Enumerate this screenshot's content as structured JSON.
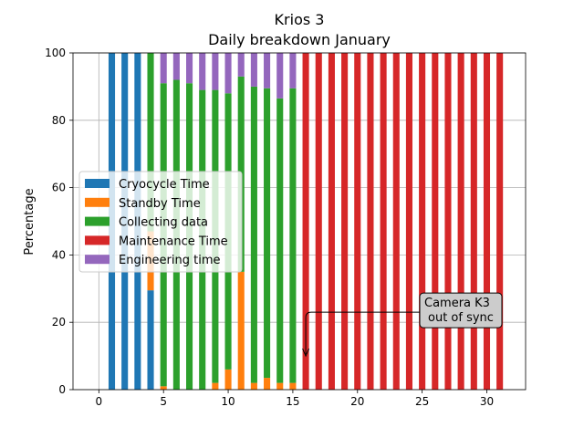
{
  "chart_data": {
    "type": "bar",
    "stacked": true,
    "title": "Krios 3",
    "subtitle": "Daily breakdown January",
    "xlabel": "",
    "ylabel": "Percentage",
    "xlim": [
      -2,
      33
    ],
    "ylim": [
      0,
      100
    ],
    "xticks": [
      0,
      5,
      10,
      15,
      20,
      25,
      30
    ],
    "yticks": [
      0,
      20,
      40,
      60,
      80,
      100
    ],
    "grid": true,
    "legend_position": "center-left",
    "x": [
      1,
      2,
      3,
      4,
      5,
      6,
      7,
      8,
      9,
      10,
      11,
      12,
      13,
      14,
      15,
      16,
      17,
      18,
      19,
      20,
      21,
      22,
      23,
      24,
      25,
      26,
      27,
      28,
      29,
      30,
      31
    ],
    "series": [
      {
        "name": "Cryocycle Time",
        "color": "#1f77b4",
        "values": [
          100,
          100,
          100,
          29.5,
          0,
          0,
          0,
          0,
          0,
          0,
          0,
          0,
          0,
          0,
          0,
          0,
          0,
          0,
          0,
          0,
          0,
          0,
          0,
          0,
          0,
          0,
          0,
          0,
          0,
          0,
          0
        ]
      },
      {
        "name": "Standby Time",
        "color": "#ff7f0e",
        "values": [
          0,
          0,
          0,
          17.5,
          1,
          0,
          0,
          0,
          2,
          6,
          35,
          2,
          3.5,
          2,
          2,
          0,
          0,
          0,
          0,
          0,
          0,
          0,
          0,
          0,
          0,
          0,
          0,
          0,
          0,
          0,
          0
        ]
      },
      {
        "name": "Collecting data",
        "color": "#2ca02c",
        "values": [
          0,
          0,
          0,
          53,
          90,
          92,
          91,
          89,
          87,
          82,
          58,
          88,
          86,
          84.5,
          87.5,
          0,
          0,
          0,
          0,
          0,
          0,
          0,
          0,
          0,
          0,
          0,
          0,
          0,
          0,
          0,
          0
        ]
      },
      {
        "name": "Maintenance Time",
        "color": "#d62728",
        "values": [
          0,
          0,
          0,
          0,
          0,
          0,
          0,
          0,
          0,
          0,
          0,
          0,
          0,
          0,
          0,
          100,
          100,
          100,
          100,
          100,
          100,
          100,
          100,
          100,
          100,
          100,
          100,
          100,
          100,
          100,
          100
        ]
      },
      {
        "name": "Engineering time",
        "color": "#9467bd",
        "values": [
          0,
          0,
          0,
          0,
          9,
          8,
          9,
          11,
          11,
          12,
          7,
          10,
          10.5,
          13.5,
          10.5,
          0,
          0,
          0,
          0,
          0,
          0,
          0,
          0,
          0,
          0,
          0,
          0,
          0,
          0,
          0,
          0
        ]
      }
    ],
    "annotation": {
      "text_line1": "Camera K3",
      "text_line2": "out of sync",
      "point_x": 16,
      "point_y": 10,
      "text_x": 28,
      "text_y": 23
    }
  }
}
